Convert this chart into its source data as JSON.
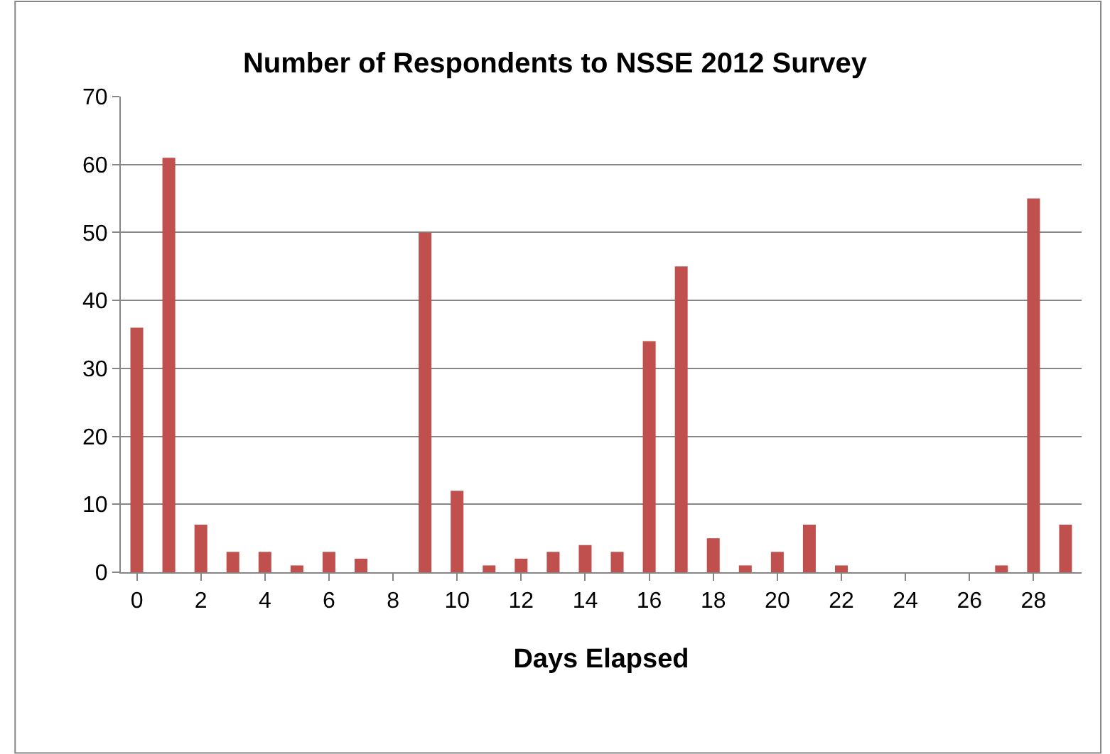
{
  "chart_data": {
    "type": "bar",
    "title": "Number of Respondents to NSSE 2012 Survey",
    "xlabel": "Days Elapsed",
    "x": [
      0,
      1,
      2,
      3,
      4,
      5,
      6,
      7,
      8,
      9,
      10,
      11,
      12,
      13,
      14,
      15,
      16,
      17,
      18,
      19,
      20,
      21,
      22,
      23,
      24,
      25,
      26,
      27,
      28,
      29
    ],
    "values": [
      36,
      61,
      7,
      3,
      3,
      1,
      3,
      2,
      0,
      50,
      12,
      1,
      2,
      3,
      4,
      3,
      34,
      45,
      5,
      1,
      3,
      7,
      1,
      0,
      0,
      0,
      0,
      1,
      55,
      7
    ],
    "color": "#c0504d",
    "xlim": [
      -0.5,
      29.5
    ],
    "xticks": [
      0,
      2,
      4,
      6,
      8,
      10,
      12,
      14,
      16,
      18,
      20,
      22,
      24,
      26,
      28
    ],
    "ylim": [
      0,
      70
    ],
    "yticks": [
      0,
      10,
      20,
      30,
      40,
      50,
      60,
      70
    ],
    "grid": "y"
  }
}
